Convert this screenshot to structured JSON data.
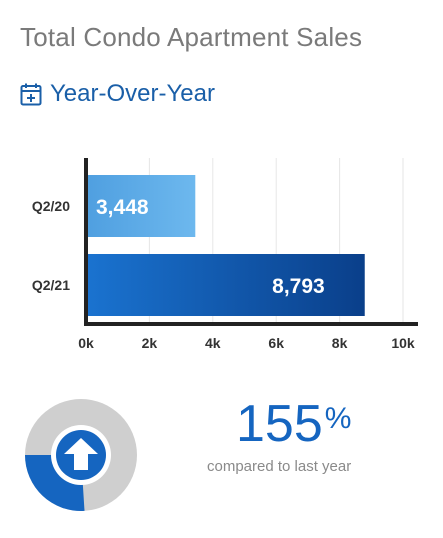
{
  "header": {
    "title": "Total Condo Apartment Sales",
    "subtitle": "Year-Over-Year",
    "subtitle_icon": "calendar-plus-icon"
  },
  "chart_data": {
    "type": "bar",
    "orientation": "horizontal",
    "categories": [
      "Q2/20",
      "Q2/21"
    ],
    "values": [
      3448,
      8793
    ],
    "value_labels": [
      "3,448",
      "8,793"
    ],
    "xlim": [
      0,
      10000
    ],
    "xticks": [
      0,
      2000,
      4000,
      6000,
      8000,
      10000
    ],
    "xtick_labels": [
      "0k",
      "2k",
      "4k",
      "6k",
      "8k",
      "10k"
    ],
    "grid": true,
    "bar_colors": [
      "#5aa9e6",
      "#0d5fb5"
    ]
  },
  "summary": {
    "percent_value": "155",
    "percent_sign": "%",
    "caption": "compared to last year",
    "donut_fraction": 0.26,
    "donut_icon": "up-arrow-icon",
    "colors": {
      "accent": "#1565c0",
      "track": "#cfcfcf"
    }
  }
}
